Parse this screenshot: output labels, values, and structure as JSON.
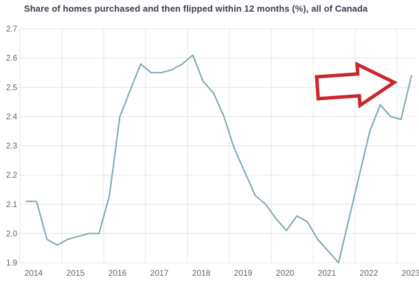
{
  "header": {
    "title": "Share of homes purchased and then flipped within 12 months (%), all of Canada"
  },
  "chart_data": {
    "type": "line",
    "title": "Share of homes purchased and then flipped within 12 months (%), all of Canada",
    "xlabel": "",
    "ylabel": "",
    "ylim": [
      1.9,
      2.7
    ],
    "grid": true,
    "legend": false,
    "x_tick_labels": [
      "2014",
      "2015",
      "2016",
      "2017",
      "2018",
      "2019",
      "2020",
      "2021",
      "2022",
      "2023"
    ],
    "y_tick_labels": [
      "2.7",
      "2.6",
      "2.5",
      "2.4",
      "2.3",
      "2.2",
      "2.1",
      "2.0",
      "1.9"
    ],
    "x": [
      "2014 Q1",
      "2014 Q2",
      "2014 Q3",
      "2014 Q4",
      "2015 Q1",
      "2015 Q2",
      "2015 Q3",
      "2015 Q4",
      "2016 Q1",
      "2016 Q2",
      "2016 Q3",
      "2016 Q4",
      "2017 Q1",
      "2017 Q2",
      "2017 Q3",
      "2017 Q4",
      "2018 Q1",
      "2018 Q2",
      "2018 Q3",
      "2018 Q4",
      "2019 Q1",
      "2019 Q2",
      "2019 Q3",
      "2019 Q4",
      "2020 Q1",
      "2020 Q2",
      "2020 Q3",
      "2020 Q4",
      "2021 Q1",
      "2021 Q2",
      "2021 Q3",
      "2021 Q4",
      "2022 Q1",
      "2022 Q2",
      "2022 Q3",
      "2022 Q4",
      "2023 Q1",
      "2023 Q2"
    ],
    "series": [
      {
        "name": "Share of homes flipped within 12 months (%)",
        "color": "#7FA5B0",
        "values": [
          2.11,
          2.11,
          1.98,
          1.96,
          1.98,
          1.99,
          2.0,
          2.0,
          2.13,
          2.4,
          2.49,
          2.58,
          2.55,
          2.55,
          2.56,
          2.58,
          2.61,
          2.52,
          2.48,
          2.4,
          2.29,
          2.21,
          2.13,
          2.1,
          2.05,
          2.01,
          2.06,
          2.04,
          1.98,
          1.94,
          1.9,
          2.05,
          2.2,
          2.35,
          2.44,
          2.4,
          2.39,
          2.54
        ]
      }
    ],
    "annotations": [
      {
        "type": "block-arrow-right",
        "stroke_color": "#C9272E",
        "fill_color": "#FFFFFF",
        "points_at": "final 2023 Q2 upturn (2.54)"
      }
    ]
  },
  "colors": {
    "background": "#FFFFFF",
    "gridline": "#E4E4E7",
    "title_text": "#3A3D4F",
    "tick_text": "#64646B",
    "line": "#7FA5B0",
    "arrow": "#C9272E"
  }
}
